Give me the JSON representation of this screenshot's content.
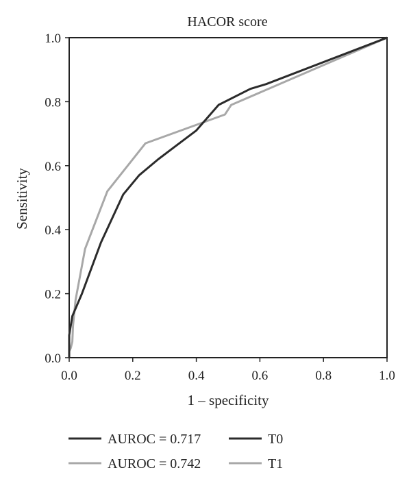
{
  "chart_data": {
    "type": "line",
    "title": "HACOR score",
    "xlabel": "1 – specificity",
    "ylabel": "Sensitivity",
    "xlim": [
      0,
      1
    ],
    "ylim": [
      0,
      1
    ],
    "x_ticks": [
      "0.0",
      "0.2",
      "0.4",
      "0.6",
      "0.8",
      "1.0"
    ],
    "y_ticks": [
      "0.0",
      "0.2",
      "0.4",
      "0.6",
      "0.8",
      "1.0"
    ],
    "grid": false,
    "legend_position": "bottom",
    "series": [
      {
        "name": "T0",
        "auroc_label": "AUROC = 0.717",
        "color": "#2b2b2b",
        "x": [
          0.0,
          0.0,
          0.005,
          0.01,
          0.04,
          0.1,
          0.17,
          0.22,
          0.28,
          0.4,
          0.47,
          0.57,
          0.62,
          1.0
        ],
        "y": [
          0.0,
          0.07,
          0.1,
          0.13,
          0.2,
          0.36,
          0.51,
          0.57,
          0.62,
          0.71,
          0.79,
          0.84,
          0.855,
          1.0
        ]
      },
      {
        "name": "T1",
        "auroc_label": "AUROC = 0.742",
        "color": "#a8a8a8",
        "x": [
          0.0,
          0.005,
          0.01,
          0.012,
          0.02,
          0.05,
          0.12,
          0.24,
          0.49,
          0.51,
          1.0
        ],
        "y": [
          0.02,
          0.03,
          0.05,
          0.1,
          0.18,
          0.34,
          0.52,
          0.67,
          0.76,
          0.79,
          1.0
        ]
      }
    ]
  }
}
